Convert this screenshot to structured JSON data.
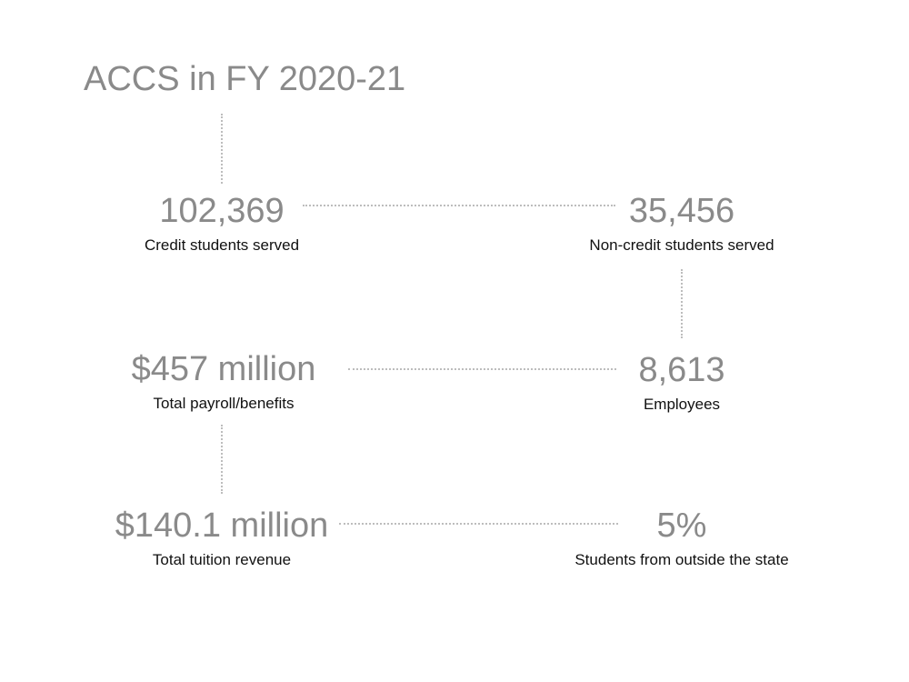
{
  "title": "ACCS in FY 2020-21",
  "stats": [
    {
      "value": "102,369",
      "label": "Credit students served"
    },
    {
      "value": "35,456",
      "label": "Non-credit students served"
    },
    {
      "value": "$457 million",
      "label": "Total payroll/benefits"
    },
    {
      "value": "8,613",
      "label": "Employees"
    },
    {
      "value": "$140.1 million",
      "label": "Total tuition revenue"
    },
    {
      "value": "5%",
      "label": "Students from outside the state"
    }
  ]
}
